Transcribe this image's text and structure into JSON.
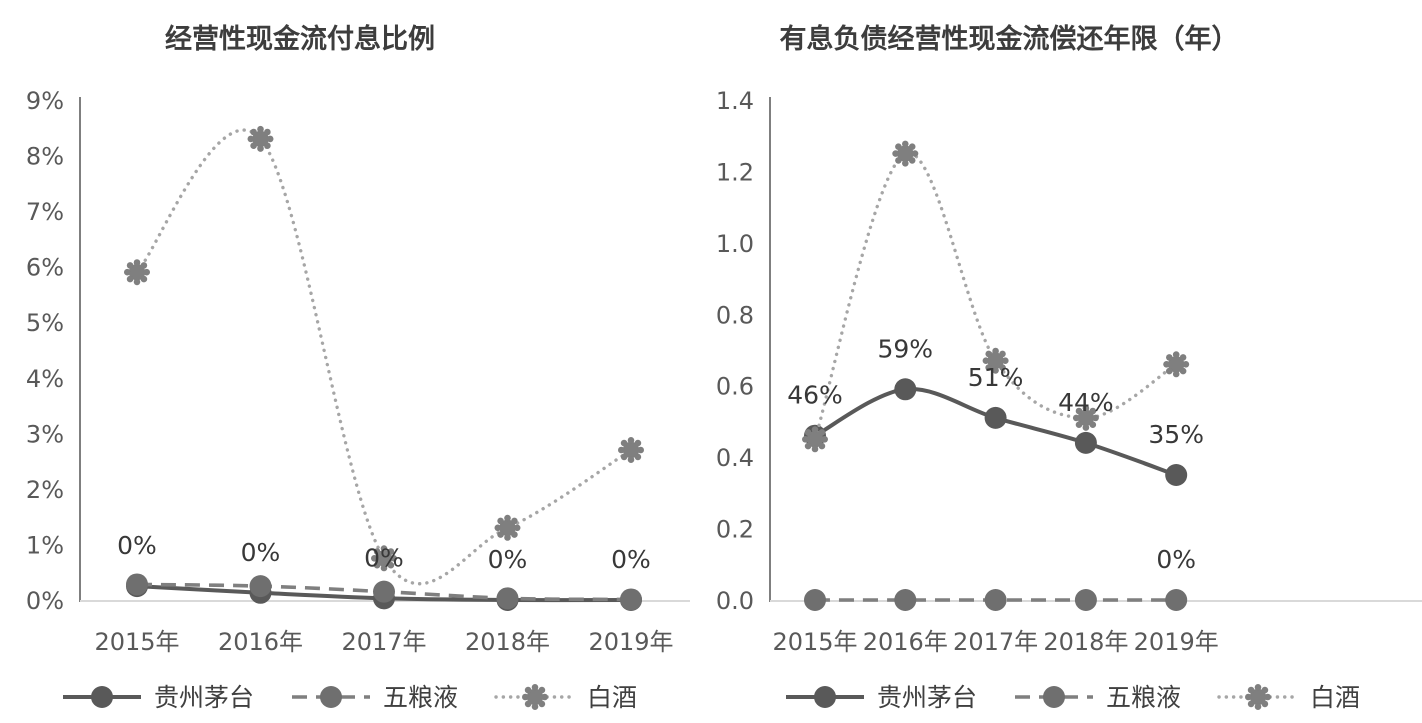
{
  "colors": {
    "background": "#ffffff",
    "title_text": "#3d3d3d",
    "axis_text": "#595959",
    "axis_line": "#7f7f7f",
    "baseline": "#d9d9d9",
    "data_label_text": "#383838",
    "series_solid": "#595959",
    "series_dashed": "#7f7f7f",
    "series_dotted": "#a6a6a6",
    "marker_gear": "#7f7f7f"
  },
  "chart_data": [
    {
      "type": "line",
      "title": "经营性现金流付息比例",
      "x_categories": [
        "2015年",
        "2016年",
        "2017年",
        "2018年",
        "2019年"
      ],
      "y_ticks": [
        "9%",
        "8%",
        "7%",
        "6%",
        "5%",
        "4%",
        "3%",
        "2%",
        "1%",
        "0%"
      ],
      "ylim": [
        0,
        9
      ],
      "y_unit": "percent",
      "grid": "off",
      "legend_position": "bottom",
      "series": [
        {
          "key": "guizhou-maotai",
          "name": "贵州茅台",
          "line_style": "solid",
          "marker": "circle",
          "color": "#595959",
          "marker_color": "#595959",
          "values": [
            0.25,
            0.13,
            0.03,
            0.0,
            0.0
          ],
          "labels": [
            "0%",
            "0%",
            "0%",
            "0%",
            "0%"
          ]
        },
        {
          "key": "wuliangye",
          "name": "五粮液",
          "line_style": "dashed",
          "marker": "circle",
          "color": "#7f7f7f",
          "marker_color": "#6f6f6f",
          "values": [
            0.28,
            0.25,
            0.15,
            0.03,
            0.01
          ],
          "labels": [
            null,
            null,
            null,
            null,
            null
          ]
        },
        {
          "key": "baijiu",
          "name": "白酒",
          "line_style": "dotted",
          "marker": "gear",
          "color": "#a6a6a6",
          "marker_color": "#7f7f7f",
          "values": [
            5.9,
            8.3,
            0.75,
            1.3,
            2.7
          ],
          "labels": [
            null,
            null,
            null,
            null,
            null
          ]
        }
      ]
    },
    {
      "type": "line",
      "title": "有息负债经营性现金流偿还年限（年）",
      "x_categories": [
        "2015年",
        "2016年",
        "2017年",
        "2018年",
        "2019年"
      ],
      "y_ticks": [
        "1.4",
        "1.2",
        "1.0",
        "0.8",
        "0.6",
        "0.4",
        "0.2",
        "0.0"
      ],
      "ylim": [
        0,
        1.4
      ],
      "y_unit": "years",
      "grid": "off",
      "legend_position": "bottom",
      "series": [
        {
          "key": "guizhou-maotai",
          "name": "贵州茅台",
          "line_style": "solid",
          "marker": "circle",
          "color": "#595959",
          "marker_color": "#595959",
          "values": [
            0.46,
            0.59,
            0.51,
            0.44,
            0.35
          ],
          "labels": [
            "46%",
            "59%",
            "51%",
            "44%",
            "35%"
          ]
        },
        {
          "key": "wuliangye",
          "name": "五粮液",
          "line_style": "dashed",
          "marker": "circle",
          "color": "#7f7f7f",
          "marker_color": "#6f6f6f",
          "values": [
            0.0,
            0.0,
            0.0,
            0.0,
            0.0
          ],
          "labels": [
            null,
            null,
            null,
            null,
            "0%"
          ]
        },
        {
          "key": "baijiu",
          "name": "白酒",
          "line_style": "dotted",
          "marker": "gear",
          "color": "#a6a6a6",
          "marker_color": "#7f7f7f",
          "values": [
            0.45,
            1.25,
            0.67,
            0.51,
            0.66
          ],
          "labels": [
            null,
            null,
            null,
            null,
            null
          ]
        }
      ]
    }
  ]
}
